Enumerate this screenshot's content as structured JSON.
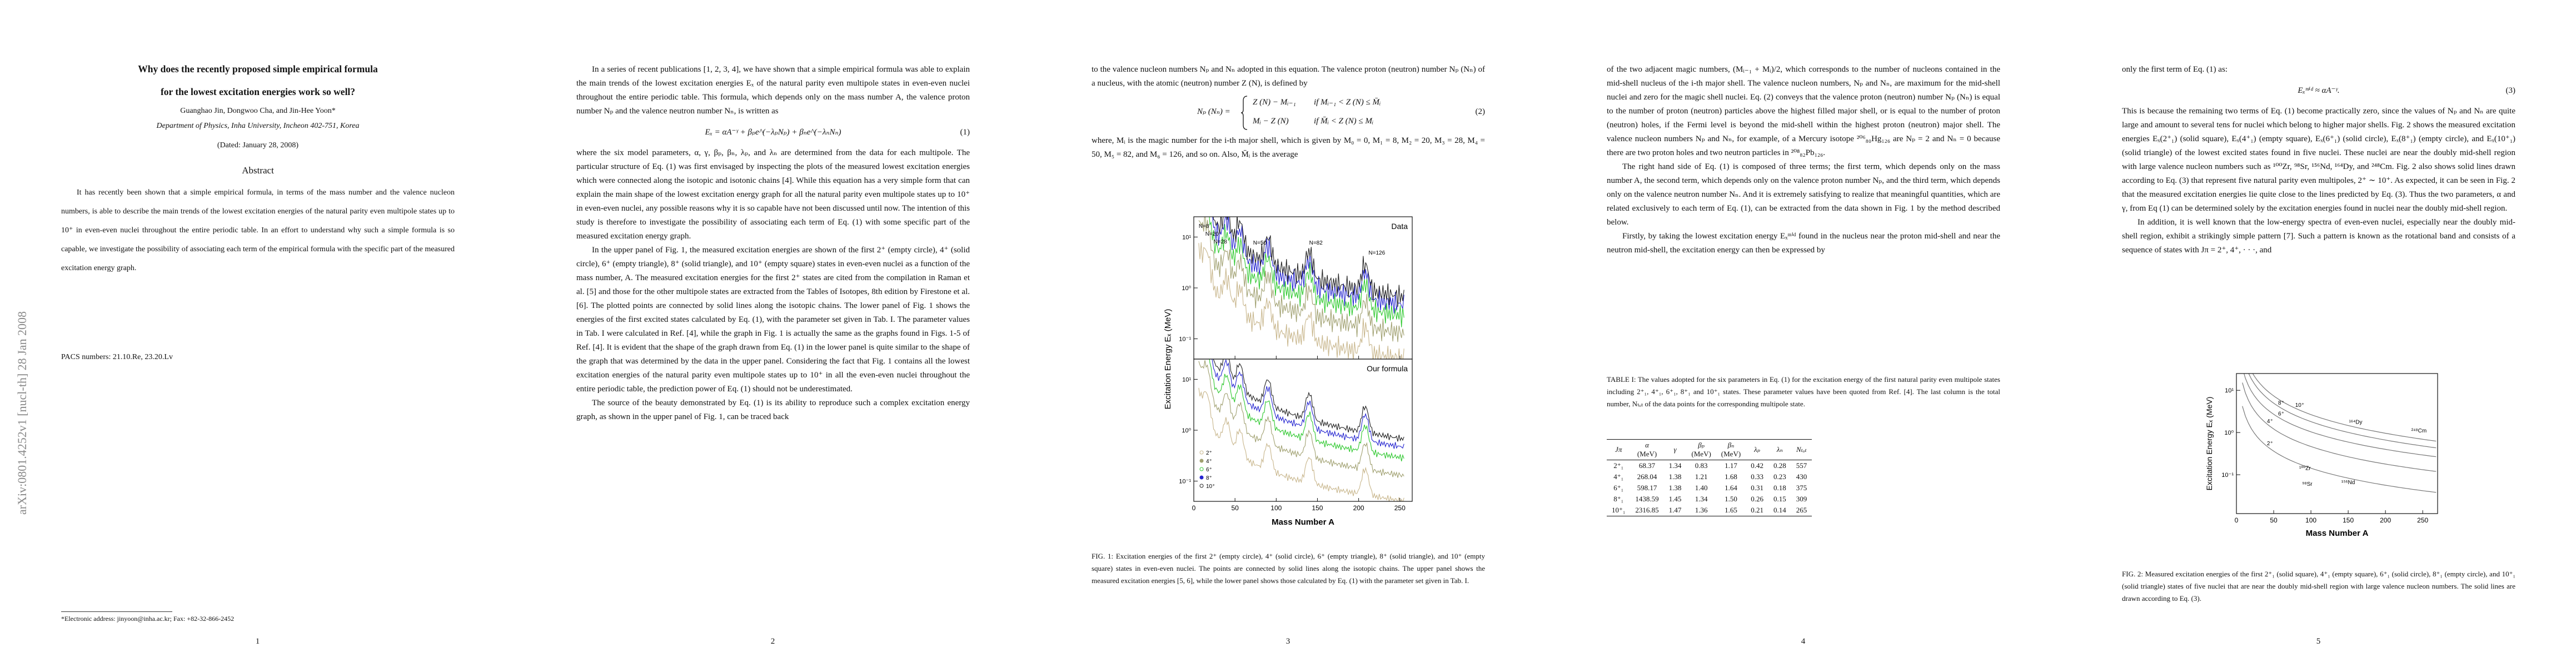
{
  "arxiv_stamp": "arXiv:0801.4252v1  [nucl-th]  28 Jan 2008",
  "page1": {
    "title_lines": [
      "Why does the recently proposed simple empirical formula",
      "for the lowest excitation energies work so well?"
    ],
    "authors": "Guanghao Jin, Dongwoo Cha, and Jin-Hee Yoon*",
    "affiliation": "Department of Physics, Inha University, Incheon 402-751, Korea",
    "date": "(Dated: January 28, 2008)",
    "abstract_heading": "Abstract",
    "abstract": "It has recently been shown that a simple empirical formula, in terms of the mass number and the valence nucleon numbers, is able to describe the main trends of the lowest excitation energies of the natural parity even multipole states up to 10⁺ in even-even nuclei throughout the entire periodic table. In an effort to understand why such a simple formula is so capable, we investigate the possibility of associating each term of the empirical formula with the specific part of the measured excitation energy graph.",
    "pacs": "PACS numbers: 21.10.Re, 23.20.Lv",
    "footnote": "*Electronic address: jinyoon@inha.ac.kr; Fax: +82-32-866-2452",
    "page_number": "1"
  },
  "page2": {
    "paragraph1": "In a series of recent publications [1, 2, 3, 4], we have shown that a simple empirical formula was able to explain the main trends of the lowest excitation energies Eₓ of the natural parity even multipole states in even-even nuclei throughout the entire periodic table. This formula, which depends only on the mass number A, the valence proton number Nₚ and the valence neutron number Nₙ, is written as",
    "equation": "Eₓ = αA⁻ᵞ + βₚe^(−λₚNₚ) + βₙe^(−λₙNₙ)",
    "equation_number": "(1)",
    "paragraph2": "where the six model parameters, α, γ, βₚ, βₙ, λₚ, and λₙ are determined from the data for each multipole. The particular structure of Eq. (1) was first envisaged by inspecting the plots of the measured lowest excitation energies which were connected along the isotopic and isotonic chains [4]. While this equation has a very simple form that can explain the main shape of the lowest excitation energy graph for all the natural parity even multipole states up to 10⁺ in even-even nuclei, any possible reasons why it is so capable have not been discussed until now. The intention of this study is therefore to investigate the possibility of associating each term of Eq. (1) with some specific part of the measured excitation energy graph.",
    "paragraph3": "In the upper panel of Fig. 1, the measured excitation energies are shown of the first 2⁺ (empty circle), 4⁺ (solid circle), 6⁺ (empty triangle), 8⁺ (solid triangle), and 10⁺ (empty square) states in even-even nuclei as a function of the mass number, A. The measured excitation energies for the first 2⁺ states are cited from the compilation in Raman et al. [5] and those for the other multipole states are extracted from the Tables of Isotopes, 8th edition by Firestone et al. [6]. The plotted points are connected by solid lines along the isotopic chains. The lower panel of Fig. 1 shows the energies of the first excited states calculated by Eq. (1), with the parameter set given in Tab. I. The parameter values in Tab. I were calculated in Ref. [4], while the graph in Fig. 1 is actually the same as the graphs found in Figs. 1-5 of Ref. [4]. It is evident that the shape of the graph drawn from Eq. (1) in the lower panel is quite similar to the shape of the graph that was determined by the data in the upper panel. Considering the fact that Fig. 1 contains all the lowest excitation energies of the natural parity even multipole states up to 10⁺ in all the even-even nuclei throughout the entire periodic table, the prediction power of Eq. (1) should not be underestimated.",
    "paragraph4": "The source of the beauty demonstrated by Eq. (1) is its ability to reproduce such a complex excitation energy graph, as shown in the upper panel of Fig. 1, can be traced back",
    "page_number": "2"
  },
  "page3": {
    "paragraph1": "to the valence nucleon numbers Nₚ and Nₙ adopted in this equation. The valence proton (neutron) number Nₚ (Nₙ) of a nucleus, with the atomic (neutron) number Z (N), is defined by",
    "equation_lhs": "Nₚ (Nₙ) =",
    "equation_cases": [
      [
        "Z (N) − Mᵢ₋₁",
        "if Mᵢ₋₁ < Z (N) ≤ M̄ᵢ"
      ],
      [
        "Mᵢ − Z (N)",
        "if M̄ᵢ < Z (N) ≤ Mᵢ"
      ]
    ],
    "equation_number": "(2)",
    "paragraph2": "where, Mᵢ is the magic number for the i-th major shell, which is given by M₀ = 0, M₁ = 8, M₂ = 20, M₃ = 28, M₄ = 50, M₅ = 82, and M₆ = 126, and so on. Also, M̄ᵢ is the average",
    "page_number": "3"
  },
  "figure1": {
    "upper_label": "Data",
    "lower_label": "Our formula",
    "magic_labels": [
      "N=8",
      "N=20",
      "N=28",
      "N=50",
      "N=82",
      "N=126"
    ],
    "ylabel": "Excitation Energy Eₓ (MeV)",
    "xlabel": "Mass Number  A",
    "xlim": [
      0,
      265
    ],
    "xticks": [
      0,
      50,
      100,
      150,
      200,
      250
    ],
    "ylim": [
      0.04,
      25
    ],
    "yticks": [
      {
        "value": 10,
        "label": "10¹"
      },
      {
        "value": 1,
        "label": "10⁰"
      },
      {
        "value": 0.1,
        "label": "10⁻¹"
      }
    ],
    "legend": [
      {
        "name": "2⁺",
        "color": "#c8b68c"
      },
      {
        "name": "4⁺",
        "color": "#a0a070"
      },
      {
        "name": "6⁺",
        "color": "#2ec82e"
      },
      {
        "name": "8⁺",
        "color": "#2424d0"
      },
      {
        "name": "10⁺",
        "color": "#222222"
      }
    ],
    "caption": "FIG. 1: Excitation energies of the first 2⁺ (empty circle), 4⁺ (solid circle), 6⁺ (empty triangle), 8⁺ (solid triangle), and 10⁺ (empty square) states in even-even nuclei. The points are connected by solid lines along the isotopic chains. The upper panel shows the measured excitation energies [5, 6], while the lower panel shows those calculated by Eq. (1) with the parameter set given in Tab. I."
  },
  "page4": {
    "paragraph1": "of the two adjacent magic numbers, (Mᵢ₋₁ + Mᵢ)/2, which corresponds to the number of nucleons contained in the mid-shell nucleus of the i-th major shell. The valence nucleon numbers, Nₚ and Nₙ, are maximum for the mid-shell nuclei and zero for the magic shell nuclei. Eq. (2) conveys that the valence proton (neutron) number Nₚ (Nₙ) is equal to the number of proton (neutron) particles above the highest filled major shell, or is equal to the number of proton (neutron) holes, if the Fermi level is beyond the mid-shell within the highest proton (neutron) major shell. The valence nucleon numbers Nₚ and Nₙ, for example, of a Mercury isotope ²⁰⁶₈₀Hg₁₂₆ are Nₚ = 2 and Nₙ = 0 because there are two proton holes and two neutron particles in ²⁰⁸₈₂Pb₁₂₆.",
    "paragraph2": "The right hand side of Eq. (1) is composed of three terms; the first term, which depends only on the mass number A, the second term, which depends only on the valence proton number Nₚ, and the third term, which depends only on the valence neutron number Nₙ. And it is extremely satisfying to realize that meaningful quantities, which are related exclusively to each term of Eq. (1), can be extracted from the data shown in Fig. 1 by the method described below.",
    "paragraph3": "Firstly, by taking the lowest excitation energy Eₓᵐⁱᵈ found in the nucleus near the proton mid-shell and near the neutron mid-shell, the excitation energy can then be expressed by",
    "page_number": "4"
  },
  "table": {
    "caption": "TABLE I: The values adopted for the six parameters in Eq. (1) for the excitation energy of the first natural parity even multipole states including 2⁺₁, 4⁺₁, 6⁺₁, 8⁺₁ and 10⁺₁ states. These parameter values have been quoted from Ref. [4]. The last column is the total number, Nₜₒₜ of the data points for the corresponding multipole state.",
    "header": [
      {
        "label": "Jπ"
      },
      {
        "label": "α",
        "unit": "(MeV)"
      },
      {
        "label": "γ"
      },
      {
        "label": "βₚ",
        "unit": "(MeV)"
      },
      {
        "label": "βₙ",
        "unit": "(MeV)"
      },
      {
        "label": "λₚ"
      },
      {
        "label": "λₙ"
      },
      {
        "label": "Nₜₒₜ"
      }
    ],
    "rows": [
      [
        "2⁺₁",
        "68.37",
        "1.34",
        "0.83",
        "1.17",
        "0.42",
        "0.28",
        "557"
      ],
      [
        "4⁺₁",
        "268.04",
        "1.38",
        "1.21",
        "1.68",
        "0.33",
        "0.23",
        "430"
      ],
      [
        "6⁺₁",
        "598.17",
        "1.38",
        "1.40",
        "1.64",
        "0.31",
        "0.18",
        "375"
      ],
      [
        "8⁺₁",
        "1438.59",
        "1.45",
        "1.34",
        "1.50",
        "0.26",
        "0.15",
        "309"
      ],
      [
        "10⁺₁",
        "2316.85",
        "1.47",
        "1.36",
        "1.65",
        "0.21",
        "0.14",
        "265"
      ]
    ]
  },
  "page5": {
    "paragraph1": "only the first term of Eq. (1) as:",
    "equation": "Eₓᵐⁱᵈ ≈ αA⁻ᵞ.",
    "equation_number": "(3)",
    "paragraph2": "This is because the remaining two terms of Eq. (1) become practically zero, since the values of Nₚ and Nₙ are quite large and amount to several tens for nuclei which belong to higher major shells. Fig. 2 shows the measured excitation energies Eₓ(2⁺₁) (solid square), Eₓ(4⁺₁) (empty square), Eₓ(6⁺₁) (solid circle), Eₓ(8⁺₁) (empty circle), and Eₓ(10⁺₁) (solid triangle) of the lowest excited states found in five nuclei. These nuclei are near the doubly mid-shell region with large valence nucleon numbers such as ¹⁰⁰Zr, ⁹⁸Sr, ¹⁵⁶Nd, ¹⁶⁴Dy, and ²⁴⁸Cm. Fig. 2 also shows solid lines drawn according to Eq. (3) that represent five natural parity even multipoles, 2⁺ ∼ 10⁺. As expected, it can be seen in Fig. 2 that the measured excitation energies lie quite close to the lines predicted by Eq. (3). Thus the two parameters, α and γ, from Eq (1) can be determined solely by the excitation energies found in nuclei near the doubly mid-shell region.",
    "paragraph3": "In addition, it is well known that the low-energy spectra of even-even nuclei, especially near the doubly mid-shell region, exhibit a strikingly simple pattern [7]. Such a pattern is known as the rotational band and consists of a sequence of states with Jπ = 2⁺, 4⁺, · · ·, and",
    "page_number": "5"
  },
  "figure2": {
    "ylabel": "Excitation Energy Eₓ (MeV)",
    "xlabel": "Mass Number  A",
    "xlim": [
      0,
      270
    ],
    "xticks": [
      0,
      50,
      100,
      150,
      200,
      250
    ],
    "ylim": [
      0.012,
      25
    ],
    "yticks": [
      {
        "value": 10,
        "label": "10¹"
      },
      {
        "value": 1,
        "label": "10⁰"
      },
      {
        "value": 0.1,
        "label": "10⁻¹"
      }
    ],
    "line_labels": [
      "2⁺",
      "4⁺",
      "6⁺",
      "8⁺",
      "10⁺"
    ],
    "nucleus_labels": [
      "¹⁰⁰Zr",
      "⁹⁸Sr",
      "¹⁵⁶Nd",
      "¹⁶⁴Dy",
      "²⁴⁸Cm"
    ],
    "caption": "FIG. 2: Measured excitation energies of the first 2⁺₁ (solid square), 4⁺₁ (empty square), 6⁺₁ (solid circle), 8⁺₁ (empty circle), and 10⁺₁ (solid triangle) states of five nuclei that are near the doubly mid-shell region with large valence nucleon numbers. The solid lines are drawn according to Eq. (3)."
  }
}
